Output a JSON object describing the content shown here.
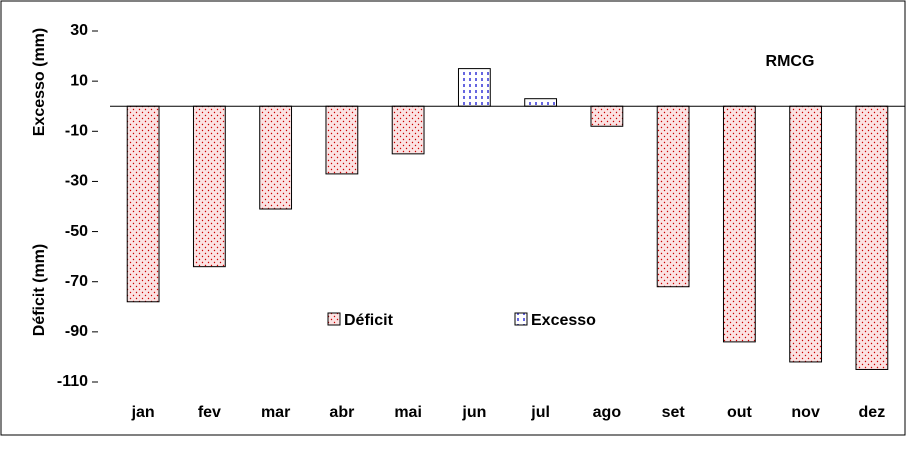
{
  "chart_data": {
    "type": "bar",
    "annotation": "RMCG",
    "y_label_top": "Excesso (mm)",
    "y_label_bottom": "Déficit (mm)",
    "categories": [
      "jan",
      "fev",
      "mar",
      "abr",
      "mai",
      "jun",
      "jul",
      "ago",
      "set",
      "out",
      "nov",
      "dez"
    ],
    "series": [
      {
        "name": "Déficit",
        "color": "#cc0000",
        "values": [
          -78,
          -64,
          -41,
          -27,
          -19,
          null,
          null,
          -8,
          -72,
          -94,
          -102,
          -105
        ]
      },
      {
        "name": "Excesso",
        "color": "#0000cc",
        "values": [
          null,
          null,
          null,
          null,
          null,
          15,
          3,
          null,
          null,
          null,
          null,
          null
        ]
      }
    ],
    "ylim": [
      -110,
      30
    ],
    "yticks": [
      30,
      10,
      -10,
      -30,
      -50,
      -70,
      -90,
      -110
    ]
  }
}
